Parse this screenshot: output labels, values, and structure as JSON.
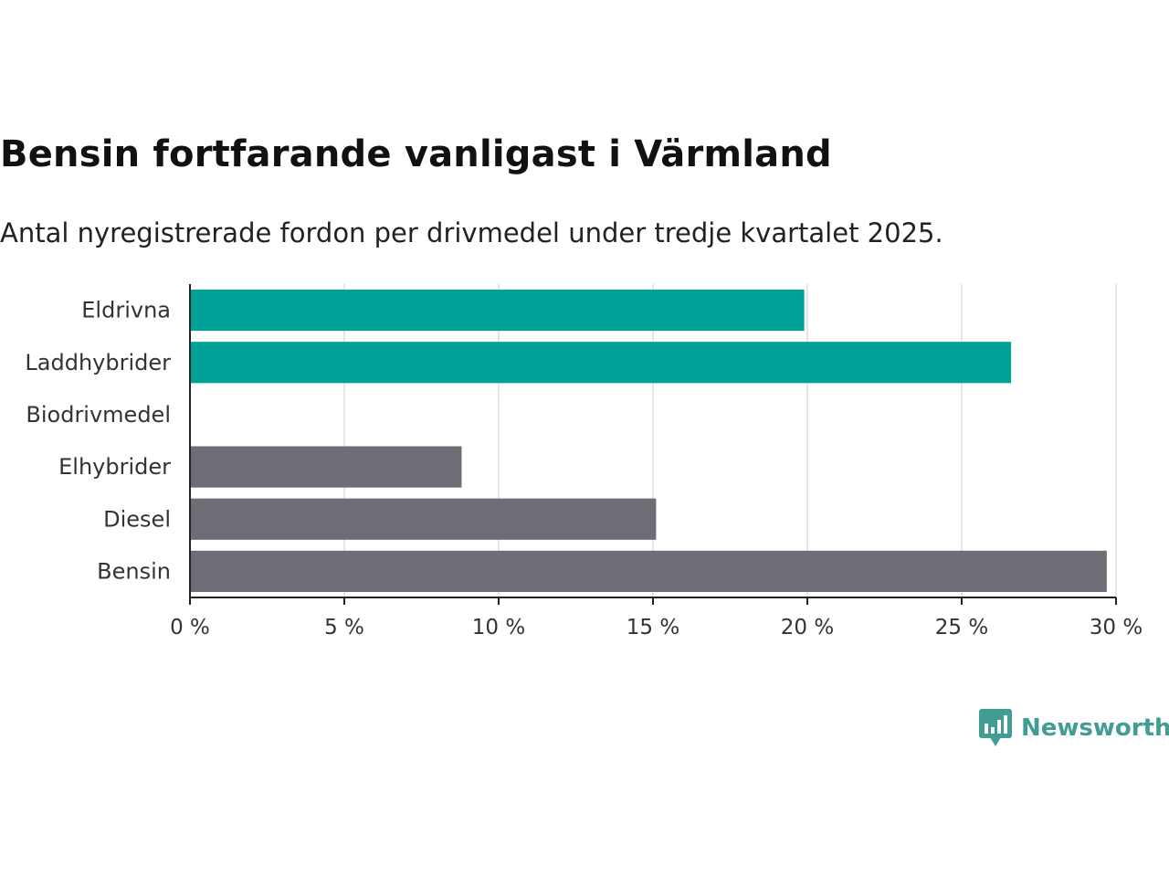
{
  "title": "Bensin fortfarande vanligast i Värmland",
  "subtitle": "Antal nyregistrerade fordon per drivmedel under tredje kvartalet 2025.",
  "brand": {
    "name": "Newsworthy",
    "color": "#3f9d94"
  },
  "colors": {
    "electric": "#00a298",
    "fossil": "#6e6c75",
    "grid": "#dddddd",
    "axis": "#222222",
    "text": "#333333"
  },
  "chart_data": {
    "type": "bar",
    "orientation": "horizontal",
    "title": "Bensin fortfarande vanligast i Värmland",
    "subtitle": "Antal nyregistrerade fordon per drivmedel under tredje kvartalet 2025.",
    "categories": [
      "Eldrivna",
      "Laddhybrider",
      "Biodrivmedel",
      "Elhybrider",
      "Diesel",
      "Bensin"
    ],
    "values": [
      19.9,
      26.6,
      0,
      8.8,
      15.1,
      29.7
    ],
    "groups": [
      "electric",
      "electric",
      "electric",
      "fossil",
      "fossil",
      "fossil"
    ],
    "xlim": [
      0,
      30
    ],
    "xticks": [
      0,
      5,
      10,
      15,
      20,
      25,
      30
    ],
    "tick_labels": [
      "0 %",
      "5 %",
      "10 %",
      "15 %",
      "20 %",
      "25 %",
      "30 %"
    ],
    "xlabel": "",
    "ylabel": "",
    "grid": true
  }
}
